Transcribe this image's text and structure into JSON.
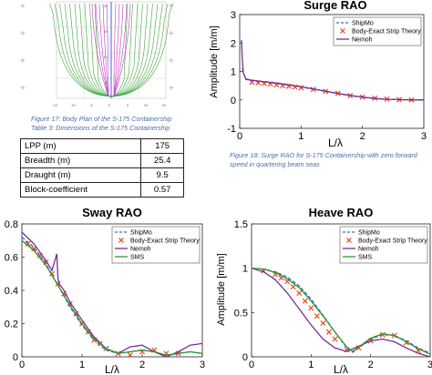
{
  "body_plan_axis_ticks": [
    "-15",
    "-10",
    "-5",
    "0",
    "5",
    "10",
    "15"
  ],
  "body_plan_y_ticks": [
    "20",
    "15",
    "10",
    "5"
  ],
  "captions": {
    "fig17": "Figure 17: Body Plan of the S-175 Containership",
    "table3": "Table 3: Dimensions of the S-175 Containership",
    "fig18_line1": "Figure 18: Surge RAO for S-175 Containership with zero forward",
    "fig18_line2": "speed in quartering beam seas"
  },
  "dimensions_table": [
    {
      "label": "LPP (m)",
      "value": "175"
    },
    {
      "label": "Breadth (m)",
      "value": "25.4"
    },
    {
      "label": "Draught (m)",
      "value": "9.5"
    },
    {
      "label": "Block-coefficient",
      "value": "0.57"
    }
  ],
  "colors": {
    "shipmo": "#2a6dd9",
    "strip": "#e8491d",
    "nemoh": "#7b2a99",
    "sms": "#2e9a2e",
    "hull_green": "#3ca63c",
    "hull_magenta": "#c23bc2"
  },
  "chart_data": [
    {
      "id": "surge",
      "type": "line",
      "title": "Surge RAO",
      "xlabel": "L/λ",
      "ylabel": "Amplitude [m/m]",
      "xlim": [
        0,
        3
      ],
      "ylim": [
        -1,
        3
      ],
      "xticks": [
        "0",
        "1",
        "2",
        "3"
      ],
      "yticks": [
        "-1",
        "0",
        "1",
        "2",
        "3"
      ],
      "legend_position": "top-right",
      "series": [
        {
          "name": "ShipMo",
          "style": "dashed",
          "color": "#2a6dd9",
          "x": [
            0.04,
            0.1,
            0.2,
            0.4,
            0.6,
            0.8,
            1.0,
            1.2,
            1.4,
            1.6,
            1.8,
            2.0,
            2.2,
            2.4,
            2.6,
            2.8,
            3.0
          ],
          "y": [
            1.1,
            0.72,
            0.68,
            0.63,
            0.58,
            0.52,
            0.45,
            0.38,
            0.3,
            0.22,
            0.15,
            0.09,
            0.05,
            0.02,
            0.01,
            0.0,
            0.0
          ]
        },
        {
          "name": "Body-Exact Strip Theory",
          "style": "marker-x",
          "color": "#e8491d",
          "x": [
            0.2,
            0.3,
            0.4,
            0.5,
            0.6,
            0.7,
            0.8,
            0.9,
            1.0,
            1.2,
            1.4,
            1.6,
            1.8,
            2.0,
            2.2,
            2.4,
            2.6,
            2.8
          ],
          "y": [
            0.62,
            0.6,
            0.58,
            0.56,
            0.53,
            0.5,
            0.48,
            0.45,
            0.43,
            0.37,
            0.3,
            0.23,
            0.15,
            0.1,
            0.06,
            0.03,
            0.01,
            0.0
          ]
        },
        {
          "name": "Nemoh",
          "style": "solid",
          "color": "#7b2a99",
          "x": [
            0.03,
            0.04,
            0.06,
            0.1,
            0.2,
            0.4,
            0.6,
            0.8,
            1.0,
            1.2,
            1.4,
            1.6,
            1.8,
            2.0,
            2.2,
            2.4,
            2.6,
            2.8,
            3.0
          ],
          "y": [
            2.1,
            1.5,
            0.95,
            0.74,
            0.69,
            0.64,
            0.59,
            0.53,
            0.46,
            0.39,
            0.31,
            0.23,
            0.16,
            0.1,
            0.05,
            0.02,
            0.01,
            0.0,
            0.0
          ]
        }
      ]
    },
    {
      "id": "sway",
      "type": "line",
      "title": "Sway RAO",
      "xlabel": "L/λ",
      "ylabel": "",
      "xlim": [
        0,
        3
      ],
      "ylim": [
        0,
        0.8
      ],
      "xticks": [
        "0",
        "1",
        "2",
        "3"
      ],
      "yticks": [
        "0",
        "0.2",
        "0.4",
        "0.6",
        "0.8"
      ],
      "legend_position": "top-right",
      "series": [
        {
          "name": "ShipMo",
          "style": "dashed",
          "color": "#2a6dd9",
          "x": [
            0,
            0.2,
            0.4,
            0.6,
            0.8,
            1.0,
            1.2,
            1.4,
            1.6,
            1.8,
            2.0,
            2.2,
            2.4,
            2.6,
            2.8,
            3.0
          ],
          "y": [
            0.72,
            0.66,
            0.56,
            0.43,
            0.3,
            0.19,
            0.1,
            0.04,
            0.02,
            0.03,
            0.04,
            0.03,
            0.01,
            0.02,
            0.03,
            0.02
          ]
        },
        {
          "name": "Body-Exact Strip Theory",
          "style": "marker-x",
          "color": "#e8491d",
          "x": [
            0.1,
            0.2,
            0.3,
            0.4,
            0.5,
            0.6,
            0.7,
            0.8,
            0.9,
            1.0,
            1.1,
            1.2,
            1.3,
            1.4,
            1.6,
            1.8,
            2.0,
            2.2,
            2.4,
            2.6
          ],
          "y": [
            0.68,
            0.65,
            0.61,
            0.57,
            0.5,
            0.44,
            0.38,
            0.32,
            0.26,
            0.2,
            0.15,
            0.1,
            0.08,
            0.05,
            0.02,
            0.01,
            0.03,
            0.04,
            0.02,
            0.02
          ]
        },
        {
          "name": "Nemoh",
          "style": "solid",
          "color": "#7b2a99",
          "x": [
            0,
            0.2,
            0.4,
            0.5,
            0.58,
            0.6,
            0.62,
            0.7,
            0.8,
            1.0,
            1.2,
            1.4,
            1.6,
            1.8,
            2.0,
            2.2,
            2.4,
            2.6,
            2.8,
            3.0
          ],
          "y": [
            0.75,
            0.68,
            0.58,
            0.52,
            0.62,
            0.47,
            0.44,
            0.4,
            0.33,
            0.22,
            0.12,
            0.05,
            0.02,
            0.06,
            0.07,
            0.03,
            0.0,
            0.03,
            0.07,
            0.08
          ]
        },
        {
          "name": "SMS",
          "style": "solid",
          "color": "#2e9a2e",
          "x": [
            0,
            0.2,
            0.4,
            0.6,
            0.8,
            1.0,
            1.2,
            1.4,
            1.6,
            1.8,
            2.0,
            2.2,
            2.4,
            2.6,
            2.8,
            3.0
          ],
          "y": [
            0.7,
            0.64,
            0.55,
            0.43,
            0.31,
            0.2,
            0.11,
            0.05,
            0.02,
            0.03,
            0.04,
            0.03,
            0.01,
            0.02,
            0.03,
            0.02
          ]
        }
      ]
    },
    {
      "id": "heave",
      "type": "line",
      "title": "Heave RAO",
      "xlabel": "L/λ",
      "ylabel": "Amplitude [m/m]",
      "xlim": [
        0,
        3
      ],
      "ylim": [
        0,
        1.5
      ],
      "xticks": [
        "0",
        "1",
        "2",
        "3"
      ],
      "yticks": [
        "0",
        "0.5",
        "1",
        "1.5"
      ],
      "legend_position": "top-right",
      "series": [
        {
          "name": "ShipMo",
          "style": "dashed",
          "color": "#2a6dd9",
          "x": [
            0,
            0.2,
            0.4,
            0.6,
            0.8,
            1.0,
            1.2,
            1.4,
            1.6,
            1.7,
            1.8,
            2.0,
            2.2,
            2.4,
            2.6,
            2.8,
            3.0
          ],
          "y": [
            1.0,
            0.99,
            0.96,
            0.9,
            0.8,
            0.65,
            0.47,
            0.28,
            0.1,
            0.05,
            0.1,
            0.2,
            0.25,
            0.24,
            0.18,
            0.1,
            0.04
          ]
        },
        {
          "name": "Body-Exact Strip Theory",
          "style": "marker-x",
          "color": "#e8491d",
          "x": [
            0.2,
            0.4,
            0.5,
            0.6,
            0.7,
            0.8,
            0.9,
            1.0,
            1.1,
            1.2,
            1.3,
            1.4,
            1.6,
            1.8,
            2.0,
            2.2,
            2.4,
            2.6,
            2.8
          ],
          "y": [
            0.97,
            0.93,
            0.89,
            0.85,
            0.79,
            0.72,
            0.63,
            0.55,
            0.46,
            0.38,
            0.28,
            0.2,
            0.08,
            0.1,
            0.18,
            0.25,
            0.24,
            0.16,
            0.07
          ]
        },
        {
          "name": "Nemoh",
          "style": "solid",
          "color": "#7b2a99",
          "x": [
            0,
            0.2,
            0.4,
            0.6,
            0.8,
            1.0,
            1.2,
            1.4,
            1.6,
            1.8,
            2.0,
            2.2,
            2.4,
            2.6,
            2.8,
            3.0
          ],
          "y": [
            1.0,
            0.96,
            0.87,
            0.72,
            0.54,
            0.36,
            0.2,
            0.1,
            0.06,
            0.12,
            0.18,
            0.2,
            0.17,
            0.1,
            0.04,
            0.0
          ]
        },
        {
          "name": "SMS",
          "style": "solid",
          "color": "#2e9a2e",
          "x": [
            0,
            0.2,
            0.4,
            0.6,
            0.8,
            1.0,
            1.2,
            1.4,
            1.6,
            1.7,
            1.8,
            2.0,
            2.2,
            2.4,
            2.6,
            2.8,
            3.0
          ],
          "y": [
            1.0,
            0.99,
            0.95,
            0.88,
            0.78,
            0.63,
            0.46,
            0.28,
            0.11,
            0.06,
            0.11,
            0.21,
            0.26,
            0.24,
            0.17,
            0.09,
            0.03
          ]
        }
      ]
    }
  ]
}
